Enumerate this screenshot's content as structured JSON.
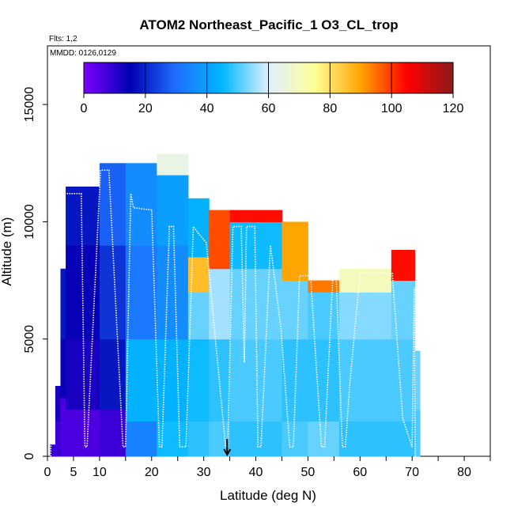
{
  "chart_data": {
    "type": "heatmap",
    "title": "ATOM2 Northeast_Pacific_1 O3_CL_trop",
    "annotations": [
      "Flts: 1,2",
      "MMDD: 0126,0129"
    ],
    "xlabel": "Latitude (deg N)",
    "ylabel": "Altitude (m)",
    "xlim": [
      0,
      85
    ],
    "ylim": [
      0,
      17500
    ],
    "x_ticks": [
      0,
      5,
      10,
      20,
      30,
      40,
      50,
      60,
      70,
      80
    ],
    "y_ticks": [
      0,
      5000,
      10000,
      15000
    ],
    "colorbar": {
      "min": 0,
      "max": 120,
      "ticks": [
        0,
        20,
        40,
        60,
        80,
        100,
        120
      ],
      "colors": [
        "#7f00ff",
        "#0000b2",
        "#1f6fff",
        "#00b7ff",
        "#dff0ff",
        "#ffff99",
        "#ffa500",
        "#ff0000",
        "#8b1a1a"
      ]
    },
    "marker_latitude": 34.5,
    "columns": [
      {
        "lat": [
          0.5,
          1.5
        ],
        "top": 500,
        "values": [
          [
            0,
            500,
            8
          ]
        ]
      },
      {
        "lat": [
          1.5,
          2.5
        ],
        "top": 3000,
        "values": [
          [
            0,
            1500,
            8
          ],
          [
            1500,
            3000,
            12
          ]
        ]
      },
      {
        "lat": [
          2.5,
          3.5
        ],
        "top": 8000,
        "values": [
          [
            0,
            2500,
            6
          ],
          [
            2500,
            5000,
            14
          ],
          [
            5000,
            8000,
            18
          ]
        ]
      },
      {
        "lat": [
          3.5,
          10
        ],
        "top": 11500,
        "values": [
          [
            0,
            2000,
            6
          ],
          [
            2000,
            5000,
            12
          ],
          [
            5000,
            9000,
            14
          ],
          [
            9000,
            11500,
            18
          ]
        ]
      },
      {
        "lat": [
          10,
          15
        ],
        "top": 12500,
        "values": [
          [
            0,
            2000,
            8
          ],
          [
            2000,
            5000,
            18
          ],
          [
            5000,
            9000,
            22
          ],
          [
            9000,
            12500,
            28
          ]
        ]
      },
      {
        "lat": [
          15,
          21
        ],
        "top": 12500,
        "values": [
          [
            0,
            1500,
            34
          ],
          [
            1500,
            5000,
            44
          ],
          [
            5000,
            9000,
            32
          ],
          [
            9000,
            12500,
            36
          ]
        ]
      },
      {
        "lat": [
          21,
          27
        ],
        "top": 12900,
        "values": [
          [
            0,
            1500,
            46
          ],
          [
            1500,
            5000,
            44
          ],
          [
            5000,
            9000,
            36
          ],
          [
            9000,
            12000,
            40
          ],
          [
            12000,
            12900,
            64
          ]
        ]
      },
      {
        "lat": [
          27,
          31
        ],
        "top": 11000,
        "values": [
          [
            0,
            1500,
            48
          ],
          [
            1500,
            5000,
            46
          ],
          [
            5000,
            7000,
            52
          ],
          [
            7000,
            8500,
            86
          ],
          [
            8500,
            11000,
            44
          ]
        ]
      },
      {
        "lat": [
          31,
          35
        ],
        "top": 10500,
        "values": [
          [
            0,
            1500,
            50
          ],
          [
            1500,
            5000,
            48
          ],
          [
            5000,
            8000,
            56
          ],
          [
            8000,
            10500,
            98
          ]
        ]
      },
      {
        "lat": [
          35,
          45
        ],
        "top": 10500,
        "values": [
          [
            0,
            1500,
            48
          ],
          [
            1500,
            5000,
            50
          ],
          [
            5000,
            8000,
            52
          ],
          [
            8000,
            10000,
            46
          ],
          [
            10000,
            10500,
            104
          ]
        ]
      },
      {
        "lat": [
          45,
          50
        ],
        "top": 10000,
        "values": [
          [
            0,
            1500,
            50
          ],
          [
            1500,
            5000,
            48
          ],
          [
            5000,
            7500,
            52
          ],
          [
            7500,
            10000,
            90
          ]
        ]
      },
      {
        "lat": [
          50,
          56
        ],
        "top": 7500,
        "values": [
          [
            0,
            1500,
            52
          ],
          [
            1500,
            5000,
            48
          ],
          [
            5000,
            7000,
            50
          ],
          [
            7000,
            7500,
            94
          ]
        ]
      },
      {
        "lat": [
          56,
          66
        ],
        "top": 8000,
        "values": [
          [
            0,
            1500,
            48
          ],
          [
            1500,
            5000,
            50
          ],
          [
            5000,
            7000,
            54
          ],
          [
            7000,
            8000,
            70
          ]
        ]
      },
      {
        "lat": [
          66,
          70.5
        ],
        "top": 8800,
        "values": [
          [
            0,
            1500,
            48
          ],
          [
            1500,
            5000,
            50
          ],
          [
            5000,
            7500,
            52
          ],
          [
            7500,
            8800,
            104
          ]
        ]
      },
      {
        "lat": [
          70.5,
          71.5
        ],
        "top": 4500,
        "values": [
          [
            0,
            2000,
            50
          ],
          [
            2000,
            4500,
            52
          ]
        ]
      }
    ],
    "flight_track": [
      [
        0.6,
        0
      ],
      [
        1.8,
        11200
      ],
      [
        2.6,
        11200
      ],
      [
        5,
        11200
      ],
      [
        6.5,
        11200
      ],
      [
        7.2,
        400
      ],
      [
        7.6,
        400
      ],
      [
        10.2,
        12200
      ],
      [
        11.8,
        12200
      ],
      [
        14.5,
        400
      ],
      [
        15,
        400
      ],
      [
        16,
        11200
      ],
      [
        16.5,
        10600
      ],
      [
        20,
        10500
      ],
      [
        21.5,
        400
      ],
      [
        22,
        400
      ],
      [
        23.4,
        9800
      ],
      [
        24.2,
        9800
      ],
      [
        25.4,
        400
      ],
      [
        26.6,
        400
      ],
      [
        28,
        9800
      ],
      [
        29,
        9500
      ],
      [
        30.5,
        9100
      ],
      [
        34.2,
        400
      ],
      [
        34.6,
        400
      ],
      [
        35.6,
        9800
      ],
      [
        37.2,
        9800
      ],
      [
        37.8,
        4000
      ],
      [
        38.2,
        9800
      ],
      [
        39.8,
        9800
      ],
      [
        40.4,
        400
      ],
      [
        41,
        400
      ],
      [
        42.8,
        9000
      ],
      [
        44.8,
        5500
      ],
      [
        46.5,
        400
      ],
      [
        47.2,
        400
      ],
      [
        48.4,
        7700
      ],
      [
        50.5,
        7700
      ],
      [
        52.6,
        400
      ],
      [
        53.2,
        400
      ],
      [
        54.8,
        7800
      ],
      [
        55.4,
        7800
      ],
      [
        56.6,
        400
      ],
      [
        57.2,
        400
      ],
      [
        58,
        3000
      ],
      [
        60,
        7800
      ],
      [
        66.2,
        7800
      ],
      [
        68.2,
        1600
      ],
      [
        70,
        400
      ],
      [
        70.4,
        7200
      ],
      [
        70.6,
        0
      ]
    ]
  }
}
